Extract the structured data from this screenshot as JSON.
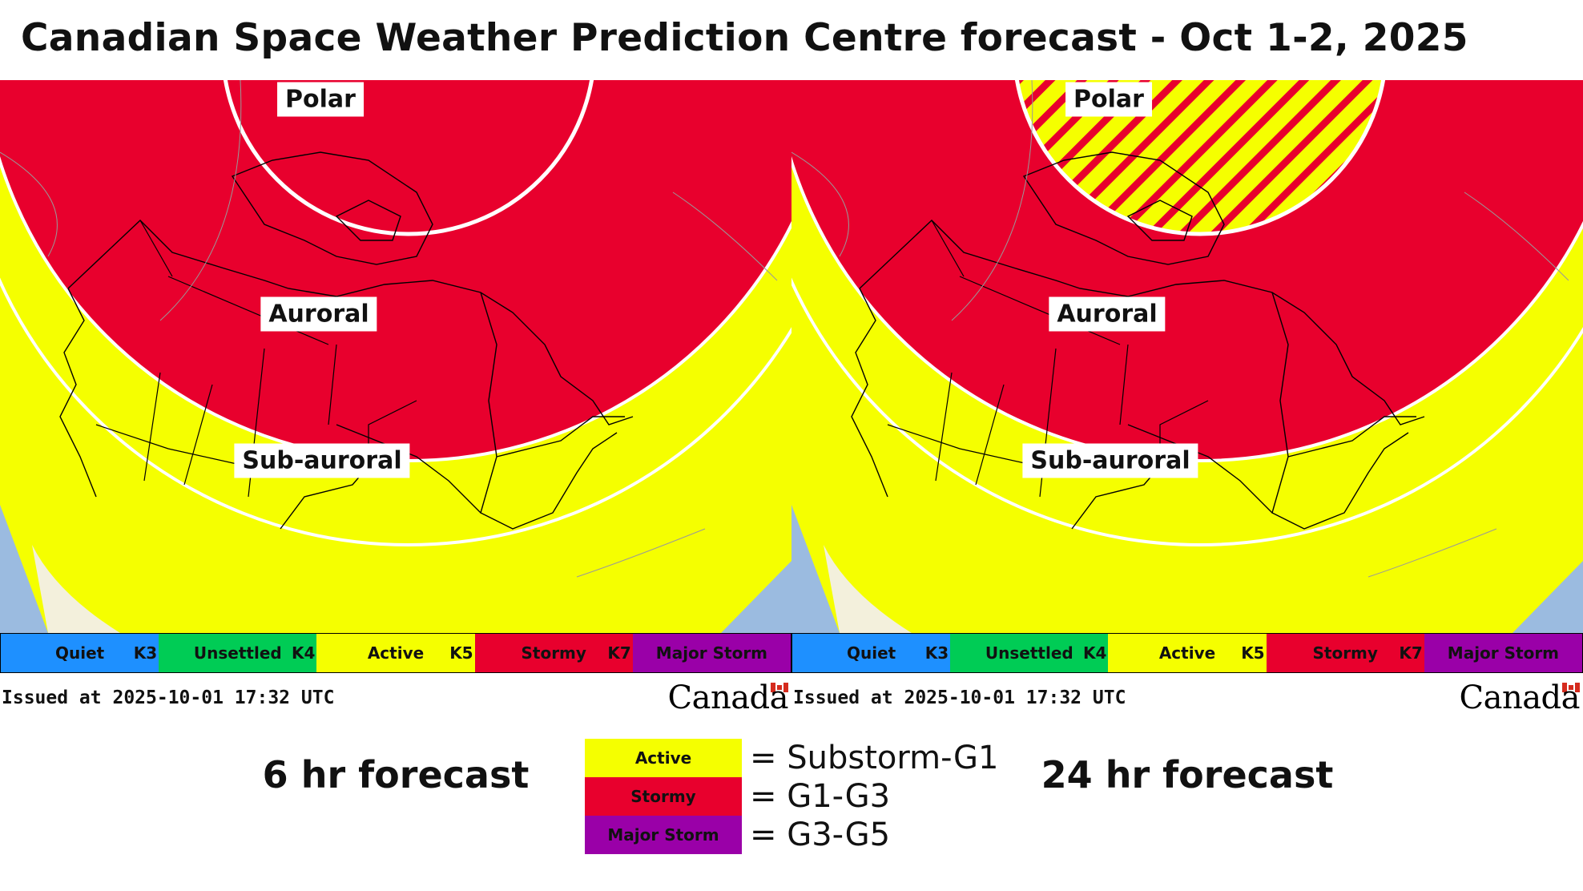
{
  "title": "Canadian Space Weather Prediction Centre forecast - Oct 1-2, 2025",
  "colors": {
    "quiet": "#1e90ff",
    "unsettled": "#00cc55",
    "active": "#f5ff00",
    "stormy": "#e8002d",
    "major_storm": "#9a00a8",
    "ocean": "#9bbbe0",
    "usa_land": "#f3f0dc"
  },
  "panels": [
    {
      "forecast_label": "6 hr forecast",
      "issued": "Issued at 2025-10-01 17:32 UTC",
      "wordmark": "Canada",
      "zones": [
        {
          "name": "Polar",
          "activity": "Stormy",
          "pattern": "solid"
        },
        {
          "name": "Auroral",
          "activity": "Stormy",
          "pattern": "solid"
        },
        {
          "name": "Sub-auroral",
          "activity": "Active",
          "pattern": "solid"
        }
      ]
    },
    {
      "forecast_label": "24 hr forecast",
      "issued": "Issued at 2025-10-01 17:32 UTC",
      "wordmark": "Canada",
      "zones": [
        {
          "name": "Polar",
          "activity": "Active/Stormy",
          "pattern": "hatched"
        },
        {
          "name": "Auroral",
          "activity": "Stormy",
          "pattern": "solid"
        },
        {
          "name": "Sub-auroral",
          "activity": "Active",
          "pattern": "solid"
        }
      ]
    }
  ],
  "scale": {
    "segments": [
      {
        "label": "Quiet",
        "k_end": "K3",
        "color": "#1e90ff"
      },
      {
        "label": "Unsettled",
        "k_end": "K4",
        "color": "#00cc55"
      },
      {
        "label": "Active",
        "k_end": "K5",
        "color": "#f5ff00"
      },
      {
        "label": "Stormy",
        "k_end": "K7",
        "color": "#e8002d"
      },
      {
        "label": "Major Storm",
        "k_end": "",
        "color": "#9a00a8"
      }
    ]
  },
  "legend": [
    {
      "label": "Active",
      "meaning": "= Substorm-G1",
      "color": "#f5ff00"
    },
    {
      "label": "Stormy",
      "meaning": "= G1-G3",
      "color": "#e8002d"
    },
    {
      "label": "Major Storm",
      "meaning": "= G3-G5",
      "color": "#9a00a8"
    }
  ]
}
